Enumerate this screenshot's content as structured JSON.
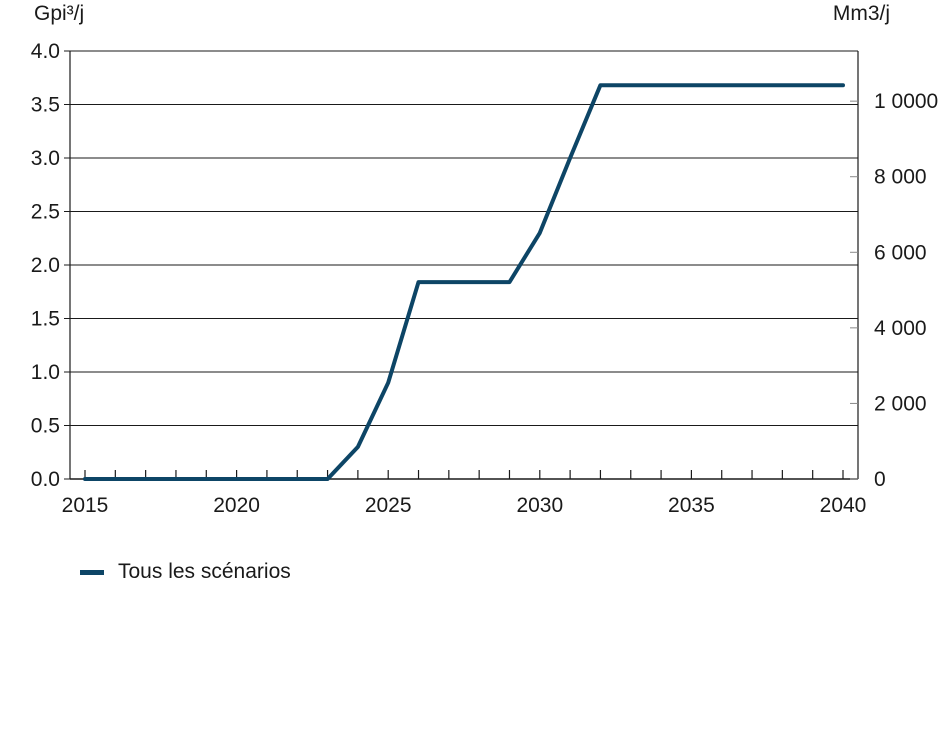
{
  "chart_data": {
    "type": "line",
    "ylabel_left": "Gpi³/j",
    "ylabel_right": "Mm3/j",
    "xlim": [
      2015,
      2040
    ],
    "ylim": [
      0,
      4.0
    ],
    "y2lim": [
      0,
      11327
    ],
    "x_ticks": [
      2015,
      2020,
      2025,
      2030,
      2035,
      2040
    ],
    "y_ticks": [
      0.0,
      0.5,
      1.0,
      1.5,
      2.0,
      2.5,
      3.0,
      3.5,
      4.0
    ],
    "y_tick_labels": [
      "0.0",
      "0.5",
      "1.0",
      "1.5",
      "2.0",
      "2.5",
      "3.0",
      "3.5",
      "4.0"
    ],
    "y2_ticks": [
      0,
      2000,
      4000,
      6000,
      8000,
      10000
    ],
    "y2_tick_labels": [
      "0",
      "2 000",
      "4 000",
      "6 000",
      "8 000",
      "1 0000"
    ],
    "grid": true,
    "legend_position": "bottom-left",
    "series": [
      {
        "name": "Tous les scénarios",
        "color": "#0d4566",
        "x": [
          2015,
          2016,
          2017,
          2018,
          2019,
          2020,
          2021,
          2022,
          2023,
          2024,
          2025,
          2026,
          2027,
          2028,
          2029,
          2030,
          2031,
          2032,
          2033,
          2034,
          2035,
          2036,
          2037,
          2038,
          2039,
          2040
        ],
        "values": [
          0,
          0,
          0,
          0,
          0,
          0,
          0,
          0,
          0,
          0.3,
          0.9,
          1.84,
          1.84,
          1.84,
          1.84,
          2.3,
          3.0,
          3.68,
          3.68,
          3.68,
          3.68,
          3.68,
          3.68,
          3.68,
          3.68,
          3.68
        ]
      }
    ]
  }
}
